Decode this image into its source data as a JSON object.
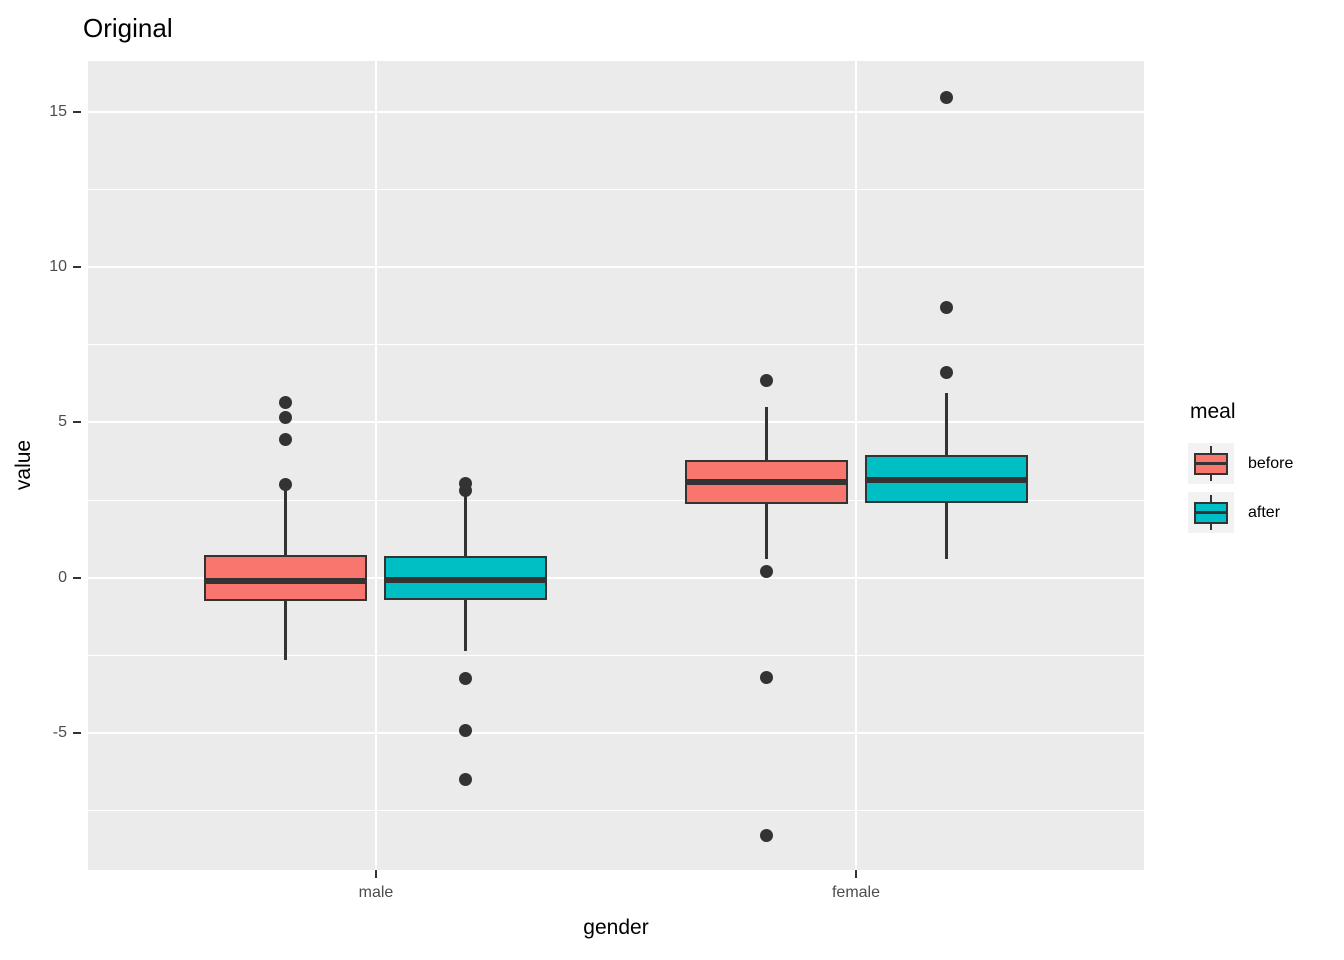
{
  "colors": {
    "before": "#F8766D",
    "after": "#00BFC4",
    "panel_background": "#EBEBEB",
    "gridline": "#FFFFFF",
    "box_outline": "#333333",
    "tick_label": "#4D4D4D",
    "legend_key_background": "#F2F2F2"
  },
  "chart_data": {
    "type": "boxplot",
    "title": "Original",
    "xlabel": "gender",
    "ylabel": "value",
    "categories": [
      "male",
      "female"
    ],
    "y_ticks": [
      15,
      10,
      5,
      0,
      -5
    ],
    "y_minor_gridlines": [
      12.5,
      7.5,
      2.5,
      -2.5,
      -7.5
    ],
    "ylim": [
      -9.4,
      16.63
    ],
    "grid": "on",
    "legend": {
      "title": "meal",
      "position": "right",
      "entries": [
        {
          "label": "before",
          "color": "#F8766D"
        },
        {
          "label": "after",
          "color": "#00BFC4"
        }
      ]
    },
    "series": [
      {
        "name": "before",
        "color": "#F8766D",
        "boxes": [
          {
            "category": "male",
            "whisker_low": -2.65,
            "q1": -0.73,
            "median": -0.1,
            "q3": 0.74,
            "whisker_high": 2.85,
            "outliers": [
              5.65,
              5.15,
              4.45,
              3.0
            ]
          },
          {
            "category": "female",
            "whisker_low": 0.62,
            "q1": 2.38,
            "median": 3.08,
            "q3": 3.79,
            "whisker_high": 5.5,
            "outliers": [
              6.35,
              0.2,
              -3.2,
              -8.3
            ]
          }
        ]
      },
      {
        "name": "after",
        "color": "#00BFC4",
        "boxes": [
          {
            "category": "male",
            "whisker_low": -2.35,
            "q1": -0.71,
            "median": -0.08,
            "q3": 0.7,
            "whisker_high": 2.67,
            "outliers": [
              3.05,
              2.8,
              -3.25,
              -4.9,
              -6.5
            ]
          },
          {
            "category": "female",
            "whisker_low": 0.6,
            "q1": 2.41,
            "median": 3.14,
            "q3": 3.95,
            "whisker_high": 5.95,
            "outliers": [
              15.45,
              8.7,
              6.6
            ]
          }
        ]
      }
    ]
  }
}
